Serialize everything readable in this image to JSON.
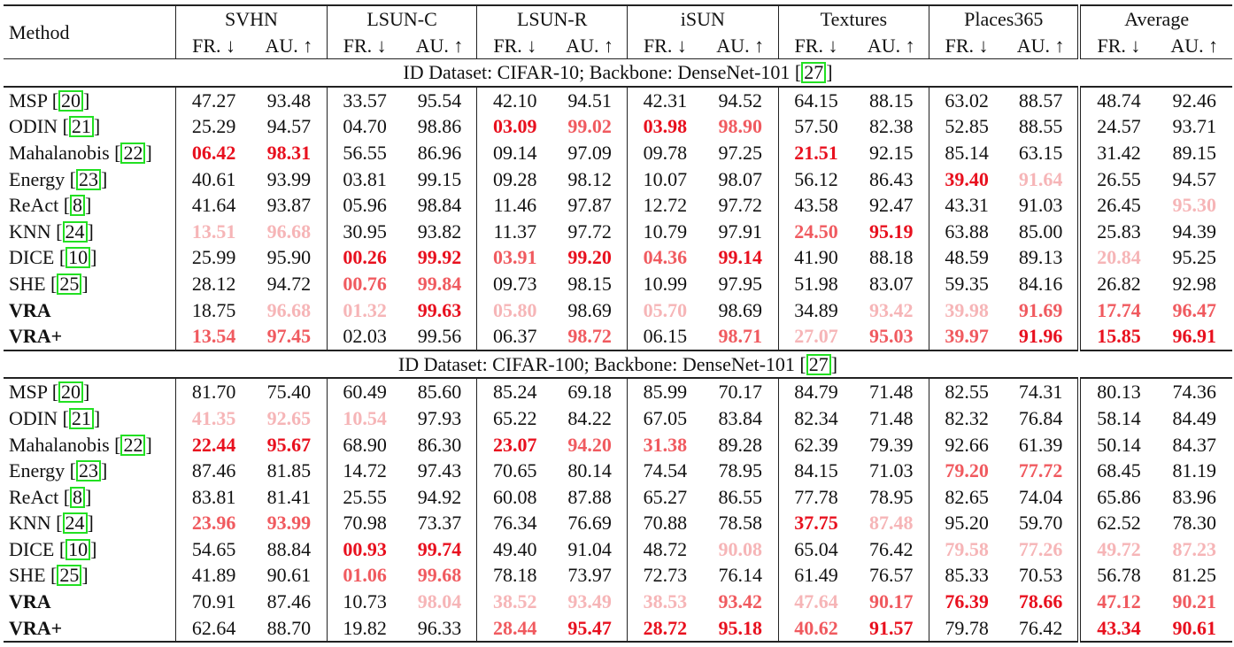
{
  "header": {
    "method_label": "Method",
    "datasets": [
      "SVHN",
      "LSUN-C",
      "LSUN-R",
      "iSUN",
      "Textures",
      "Places365",
      "Average"
    ],
    "fr_label": "FR. ↓",
    "au_label": "AU. ↑"
  },
  "legend_colors": {
    "rank1": "#e8101e",
    "rank2": "#f05a5f",
    "rank3": "#f6b5b7",
    "citation_box": "#22e022"
  },
  "sections": [
    {
      "title_prefix": "ID Dataset: CIFAR-10; Backbone: DenseNet-101 [",
      "title_cite": "27",
      "title_suffix": "]",
      "rows": [
        {
          "method": "MSP [",
          "cite": "20",
          "bold": false,
          "values": [
            "47.27",
            "93.48",
            "33.57",
            "95.54",
            "42.10",
            "94.51",
            "42.31",
            "94.52",
            "64.15",
            "88.15",
            "63.02",
            "88.57",
            "48.74",
            "92.46"
          ],
          "ranks": [
            0,
            0,
            0,
            0,
            0,
            0,
            0,
            0,
            0,
            0,
            0,
            0,
            0,
            0
          ]
        },
        {
          "method": "ODIN [",
          "cite": "21",
          "bold": false,
          "values": [
            "25.29",
            "94.57",
            "04.70",
            "98.86",
            "03.09",
            "99.02",
            "03.98",
            "98.90",
            "57.50",
            "82.38",
            "52.85",
            "88.55",
            "24.57",
            "93.71"
          ],
          "ranks": [
            0,
            0,
            0,
            0,
            1,
            2,
            1,
            2,
            0,
            0,
            0,
            0,
            0,
            0
          ]
        },
        {
          "method": "Mahalanobis [",
          "cite": "22",
          "bold": false,
          "values": [
            "06.42",
            "98.31",
            "56.55",
            "86.96",
            "09.14",
            "97.09",
            "09.78",
            "97.25",
            "21.51",
            "92.15",
            "85.14",
            "63.15",
            "31.42",
            "89.15"
          ],
          "ranks": [
            1,
            1,
            0,
            0,
            0,
            0,
            0,
            0,
            1,
            0,
            0,
            0,
            0,
            0
          ]
        },
        {
          "method": "Energy [",
          "cite": "23",
          "bold": false,
          "values": [
            "40.61",
            "93.99",
            "03.81",
            "99.15",
            "09.28",
            "98.12",
            "10.07",
            "98.07",
            "56.12",
            "86.43",
            "39.40",
            "91.64",
            "26.55",
            "94.57"
          ],
          "ranks": [
            0,
            0,
            0,
            0,
            0,
            0,
            0,
            0,
            0,
            0,
            1,
            3,
            0,
            0
          ]
        },
        {
          "method": "ReAct [",
          "cite": "8",
          "bold": false,
          "values": [
            "41.64",
            "93.87",
            "05.96",
            "98.84",
            "11.46",
            "97.87",
            "12.72",
            "97.72",
            "43.58",
            "92.47",
            "43.31",
            "91.03",
            "26.45",
            "95.30"
          ],
          "ranks": [
            0,
            0,
            0,
            0,
            0,
            0,
            0,
            0,
            0,
            0,
            0,
            0,
            0,
            3
          ]
        },
        {
          "method": "KNN [",
          "cite": "24",
          "bold": false,
          "values": [
            "13.51",
            "96.68",
            "30.95",
            "93.82",
            "11.37",
            "97.72",
            "10.79",
            "97.91",
            "24.50",
            "95.19",
            "63.88",
            "85.00",
            "25.83",
            "94.39"
          ],
          "ranks": [
            3,
            3,
            0,
            0,
            0,
            0,
            0,
            0,
            2,
            1,
            0,
            0,
            0,
            0
          ]
        },
        {
          "method": "DICE [",
          "cite": "10",
          "bold": false,
          "values": [
            "25.99",
            "95.90",
            "00.26",
            "99.92",
            "03.91",
            "99.20",
            "04.36",
            "99.14",
            "41.90",
            "88.18",
            "48.59",
            "89.13",
            "20.84",
            "95.25"
          ],
          "ranks": [
            0,
            0,
            1,
            1,
            2,
            1,
            2,
            1,
            0,
            0,
            0,
            0,
            3,
            0
          ]
        },
        {
          "method": "SHE [",
          "cite": "25",
          "bold": false,
          "values": [
            "28.12",
            "94.72",
            "00.76",
            "99.84",
            "09.73",
            "98.15",
            "10.99",
            "97.95",
            "51.98",
            "83.07",
            "59.35",
            "84.16",
            "26.82",
            "92.98"
          ],
          "ranks": [
            0,
            0,
            2,
            2,
            0,
            0,
            0,
            0,
            0,
            0,
            0,
            0,
            0,
            0
          ]
        },
        {
          "method": "VRA",
          "cite": "",
          "bold": true,
          "values": [
            "18.75",
            "96.68",
            "01.32",
            "99.63",
            "05.80",
            "98.69",
            "05.70",
            "98.69",
            "34.89",
            "93.42",
            "39.98",
            "91.69",
            "17.74",
            "96.47"
          ],
          "ranks": [
            0,
            3,
            3,
            1,
            3,
            0,
            3,
            0,
            0,
            3,
            3,
            2,
            2,
            2
          ]
        },
        {
          "method": "VRA+",
          "cite": "",
          "bold": true,
          "values": [
            "13.54",
            "97.45",
            "02.03",
            "99.56",
            "06.37",
            "98.72",
            "06.15",
            "98.71",
            "27.07",
            "95.03",
            "39.97",
            "91.96",
            "15.85",
            "96.91"
          ],
          "ranks": [
            2,
            2,
            0,
            0,
            0,
            2,
            0,
            2,
            3,
            2,
            2,
            1,
            1,
            1
          ]
        }
      ]
    },
    {
      "title_prefix": "ID Dataset: CIFAR-100; Backbone: DenseNet-101 [",
      "title_cite": "27",
      "title_suffix": "]",
      "rows": [
        {
          "method": "MSP [",
          "cite": "20",
          "bold": false,
          "values": [
            "81.70",
            "75.40",
            "60.49",
            "85.60",
            "85.24",
            "69.18",
            "85.99",
            "70.17",
            "84.79",
            "71.48",
            "82.55",
            "74.31",
            "80.13",
            "74.36"
          ],
          "ranks": [
            0,
            0,
            0,
            0,
            0,
            0,
            0,
            0,
            0,
            0,
            0,
            0,
            0,
            0
          ]
        },
        {
          "method": "ODIN [",
          "cite": "21",
          "bold": false,
          "values": [
            "41.35",
            "92.65",
            "10.54",
            "97.93",
            "65.22",
            "84.22",
            "67.05",
            "83.84",
            "82.34",
            "71.48",
            "82.32",
            "76.84",
            "58.14",
            "84.49"
          ],
          "ranks": [
            3,
            3,
            3,
            0,
            0,
            0,
            0,
            0,
            0,
            0,
            0,
            0,
            0,
            0
          ]
        },
        {
          "method": "Mahalanobis [",
          "cite": "22",
          "bold": false,
          "values": [
            "22.44",
            "95.67",
            "68.90",
            "86.30",
            "23.07",
            "94.20",
            "31.38",
            "89.28",
            "62.39",
            "79.39",
            "92.66",
            "61.39",
            "50.14",
            "84.37"
          ],
          "ranks": [
            1,
            1,
            0,
            0,
            1,
            2,
            2,
            0,
            0,
            0,
            0,
            0,
            0,
            0
          ]
        },
        {
          "method": "Energy [",
          "cite": "23",
          "bold": false,
          "values": [
            "87.46",
            "81.85",
            "14.72",
            "97.43",
            "70.65",
            "80.14",
            "74.54",
            "78.95",
            "84.15",
            "71.03",
            "79.20",
            "77.72",
            "68.45",
            "81.19"
          ],
          "ranks": [
            0,
            0,
            0,
            0,
            0,
            0,
            0,
            0,
            0,
            0,
            2,
            2,
            0,
            0
          ]
        },
        {
          "method": "ReAct [",
          "cite": "8",
          "bold": false,
          "values": [
            "83.81",
            "81.41",
            "25.55",
            "94.92",
            "60.08",
            "87.88",
            "65.27",
            "86.55",
            "77.78",
            "78.95",
            "82.65",
            "74.04",
            "65.86",
            "83.96"
          ],
          "ranks": [
            0,
            0,
            0,
            0,
            0,
            0,
            0,
            0,
            0,
            0,
            0,
            0,
            0,
            0
          ]
        },
        {
          "method": "KNN [",
          "cite": "24",
          "bold": false,
          "values": [
            "23.96",
            "93.99",
            "70.98",
            "73.37",
            "76.34",
            "76.69",
            "70.88",
            "78.58",
            "37.75",
            "87.48",
            "95.20",
            "59.70",
            "62.52",
            "78.30"
          ],
          "ranks": [
            2,
            2,
            0,
            0,
            0,
            0,
            0,
            0,
            1,
            3,
            0,
            0,
            0,
            0
          ]
        },
        {
          "method": "DICE [",
          "cite": "10",
          "bold": false,
          "values": [
            "54.65",
            "88.84",
            "00.93",
            "99.74",
            "49.40",
            "91.04",
            "48.72",
            "90.08",
            "65.04",
            "76.42",
            "79.58",
            "77.26",
            "49.72",
            "87.23"
          ],
          "ranks": [
            0,
            0,
            1,
            1,
            0,
            0,
            0,
            3,
            0,
            0,
            3,
            3,
            3,
            3
          ]
        },
        {
          "method": "SHE [",
          "cite": "25",
          "bold": false,
          "values": [
            "41.89",
            "90.61",
            "01.06",
            "99.68",
            "78.18",
            "73.97",
            "72.73",
            "76.14",
            "61.49",
            "76.57",
            "85.33",
            "70.53",
            "56.78",
            "81.25"
          ],
          "ranks": [
            0,
            0,
            2,
            2,
            0,
            0,
            0,
            0,
            0,
            0,
            0,
            0,
            0,
            0
          ]
        },
        {
          "method": "VRA",
          "cite": "",
          "bold": true,
          "values": [
            "70.91",
            "87.46",
            "10.73",
            "98.04",
            "38.52",
            "93.49",
            "38.53",
            "93.42",
            "47.64",
            "90.17",
            "76.39",
            "78.66",
            "47.12",
            "90.21"
          ],
          "ranks": [
            0,
            0,
            0,
            3,
            3,
            3,
            3,
            2,
            3,
            2,
            1,
            1,
            2,
            2
          ]
        },
        {
          "method": "VRA+",
          "cite": "",
          "bold": true,
          "values": [
            "62.64",
            "88.70",
            "19.82",
            "96.33",
            "28.44",
            "95.47",
            "28.72",
            "95.18",
            "40.62",
            "91.57",
            "79.78",
            "76.42",
            "43.34",
            "90.61"
          ],
          "ranks": [
            0,
            0,
            0,
            0,
            2,
            1,
            1,
            1,
            2,
            1,
            0,
            0,
            1,
            1
          ]
        }
      ]
    }
  ]
}
